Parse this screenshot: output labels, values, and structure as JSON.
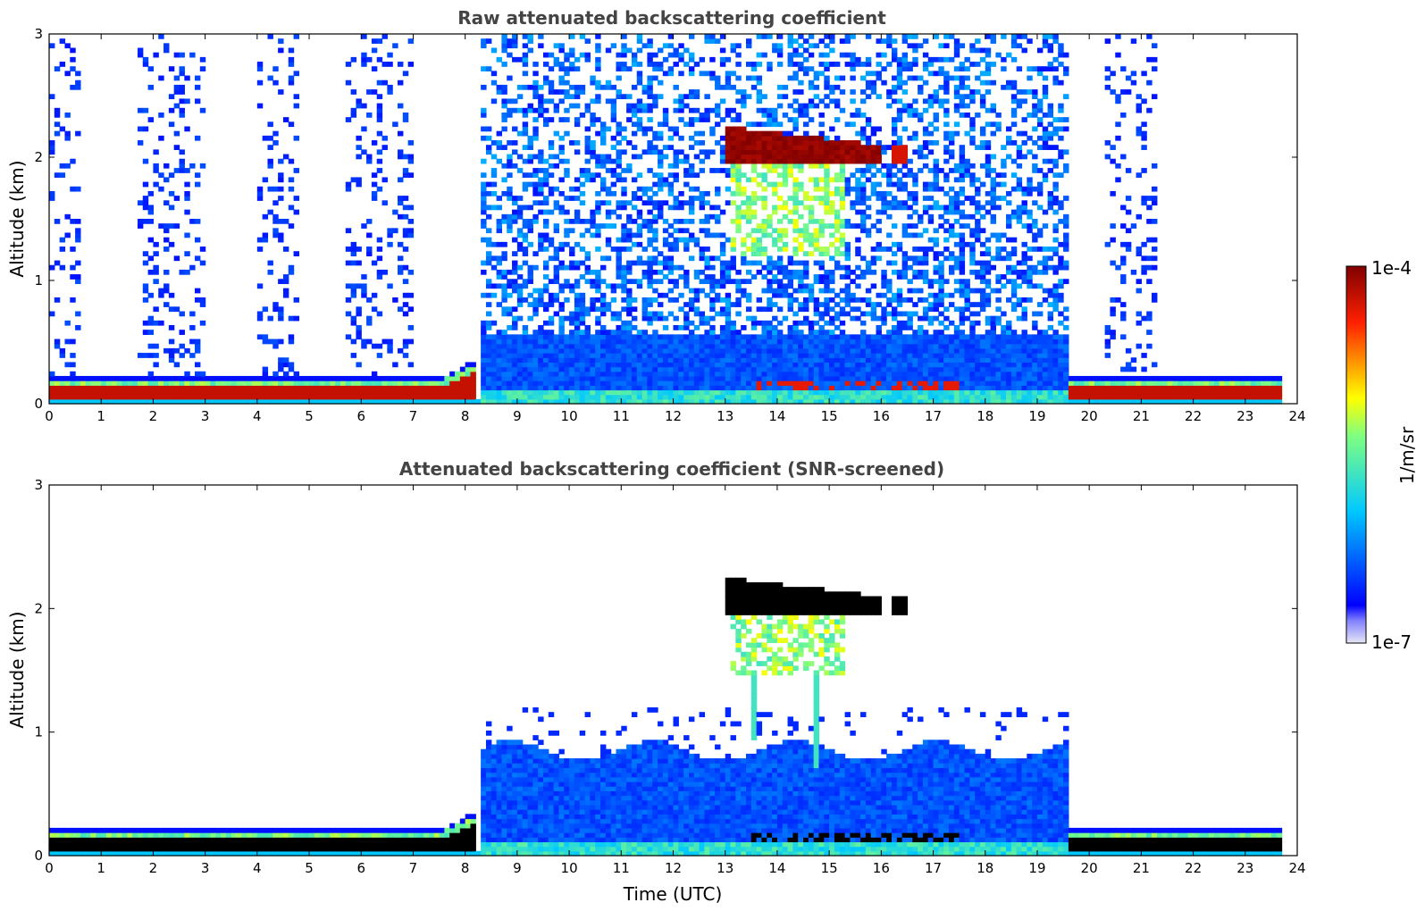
{
  "chart_data": [
    {
      "type": "heatmap",
      "title": "Raw attenuated backscattering coefficient",
      "xlabel": "",
      "ylabel": "Altitude (km)",
      "xlim": [
        0,
        24
      ],
      "ylim": [
        0,
        3
      ],
      "x_ticks": [
        "0",
        "1",
        "2",
        "3",
        "4",
        "5",
        "6",
        "7",
        "8",
        "9",
        "10",
        "11",
        "12",
        "13",
        "14",
        "15",
        "16",
        "17",
        "18",
        "19",
        "20",
        "21",
        "22",
        "23",
        "24"
      ],
      "y_ticks": [
        "0",
        "1",
        "2",
        "3"
      ],
      "features": [
        {
          "name": "surface aerosol layer",
          "x": [
            0,
            8.2
          ],
          "y": [
            0,
            0.2
          ],
          "level": "high"
        },
        {
          "name": "boundary layer",
          "x": [
            8.2,
            19.6
          ],
          "y": [
            0,
            0.6
          ],
          "level": "low"
        },
        {
          "name": "cloud layer",
          "x": [
            13,
            16.5
          ],
          "y": [
            1.95,
            2.25
          ],
          "level": "max"
        },
        {
          "name": "virga below cloud",
          "x": [
            13,
            15.3
          ],
          "y": [
            1.2,
            2.0
          ],
          "level": "medium"
        },
        {
          "name": "surface aerosol layer",
          "x": [
            19.6,
            23.7
          ],
          "y": [
            0,
            0.2
          ],
          "level": "high"
        }
      ]
    },
    {
      "type": "heatmap",
      "title": "Attenuated backscattering coefficient (SNR-screened)",
      "xlabel": "Time (UTC)",
      "ylabel": "Altitude (km)",
      "xlim": [
        0,
        24
      ],
      "ylim": [
        0,
        3
      ],
      "x_ticks": [
        "0",
        "1",
        "2",
        "3",
        "4",
        "5",
        "6",
        "7",
        "8",
        "9",
        "10",
        "11",
        "12",
        "13",
        "14",
        "15",
        "16",
        "17",
        "18",
        "19",
        "20",
        "21",
        "22",
        "23",
        "24"
      ],
      "y_ticks": [
        "0",
        "1",
        "2",
        "3"
      ],
      "features": [
        {
          "name": "surface aerosol layer",
          "x": [
            0,
            8.2
          ],
          "y": [
            0,
            0.22
          ],
          "level": "high"
        },
        {
          "name": "boundary layer",
          "x": [
            8.5,
            18.8
          ],
          "y": [
            0,
            0.95
          ],
          "level": "low"
        },
        {
          "name": "cloud layer",
          "x": [
            13,
            16.5
          ],
          "y": [
            1.95,
            2.25
          ],
          "level": "max"
        },
        {
          "name": "virga below cloud",
          "x": [
            13.1,
            15.3
          ],
          "y": [
            0.7,
            2.0
          ],
          "level": "medium"
        },
        {
          "name": "surface aerosol layer",
          "x": [
            19.6,
            23.7
          ],
          "y": [
            0,
            0.25
          ],
          "level": "high"
        }
      ]
    }
  ],
  "colorbar": {
    "label": "1/m/sr",
    "max_label": "1e-4",
    "min_label": "1e-7",
    "colormap": "jet",
    "colors": [
      "#e6e6f5",
      "#0000ff",
      "#00c8ff",
      "#ffff00",
      "#ff0000",
      "#800000"
    ],
    "screened_high_color": "#000000"
  }
}
